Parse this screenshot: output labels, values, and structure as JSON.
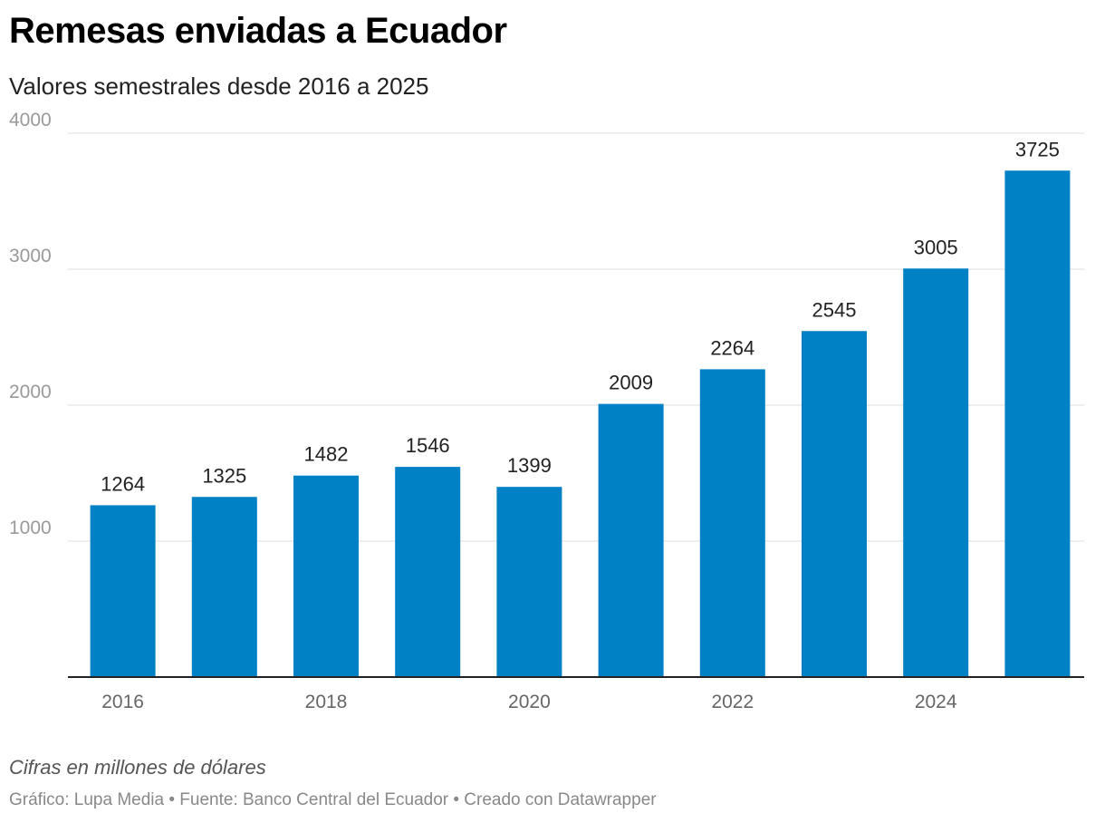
{
  "chart_data": {
    "type": "bar",
    "title": "Remesas enviadas a Ecuador",
    "subtitle": "Valores semestrales desde 2016 a 2025",
    "categories": [
      "2016",
      "2017",
      "2018",
      "2019",
      "2020",
      "2021",
      "2022",
      "2023",
      "2024",
      "2025"
    ],
    "x_tick_labels": [
      "2016",
      "",
      "2018",
      "",
      "2020",
      "",
      "2022",
      "",
      "2024",
      ""
    ],
    "values": [
      1264,
      1325,
      1482,
      1546,
      1399,
      2009,
      2264,
      2545,
      3005,
      3725
    ],
    "data_labels": [
      "1264",
      "1325",
      "1482",
      "1546",
      "1399",
      "2009",
      "2264",
      "2545",
      "3005",
      "3725"
    ],
    "y_ticks": [
      1000,
      2000,
      3000,
      4000
    ],
    "y_tick_labels": [
      "1000",
      "2000",
      "3000",
      "4000"
    ],
    "ylim": [
      0,
      4000
    ],
    "grid": true,
    "bar_color": "#0081c6",
    "notes": "Cifras en millones de dólares",
    "footer": "Gráfico: Lupa Media • Fuente: Banco Central del Ecuador • Creado con Datawrapper"
  }
}
